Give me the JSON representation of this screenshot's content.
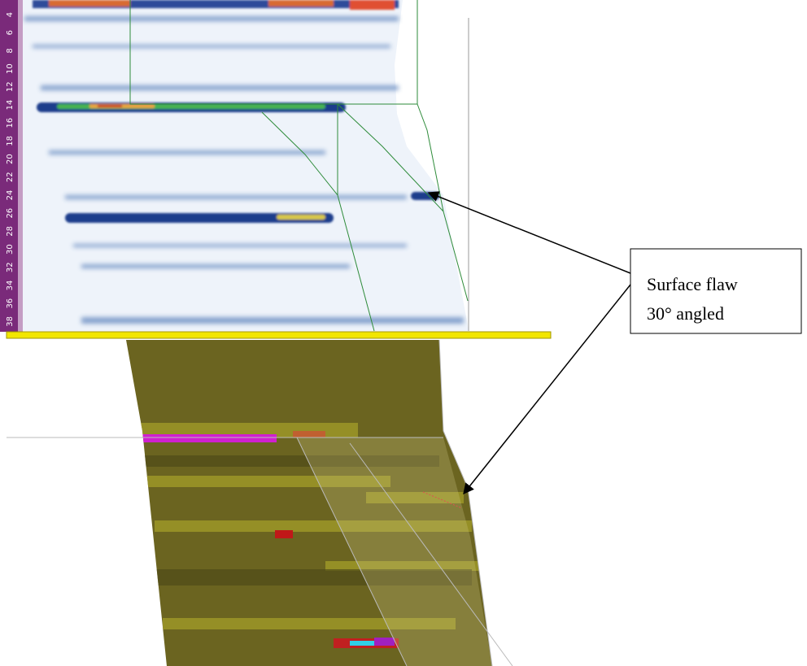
{
  "ruler": {
    "labels": [
      "4",
      "6",
      "8",
      "10",
      "12",
      "14",
      "16",
      "18",
      "20",
      "22",
      "24",
      "26",
      "28",
      "30",
      "32",
      "34",
      "36",
      "38"
    ]
  },
  "callout": {
    "lines": [
      "Surface flaw",
      "30° angled"
    ]
  }
}
